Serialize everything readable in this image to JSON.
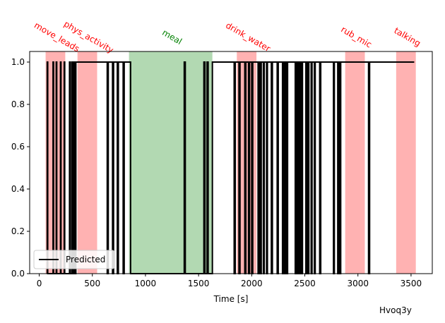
{
  "chart_data": {
    "type": "line",
    "title": "",
    "xlabel": "Time [s]",
    "ylabel": "",
    "xlim": [
      -90,
      3700
    ],
    "ylim": [
      0.0,
      1.05
    ],
    "xticks": [
      0,
      500,
      1000,
      1500,
      2000,
      2500,
      3000,
      3500
    ],
    "xtick_labels": [
      "0",
      "500",
      "1000",
      "1500",
      "2000",
      "2500",
      "3000",
      "3500"
    ],
    "yticks": [
      0.0,
      0.2,
      0.4,
      0.6,
      0.8,
      1.0
    ],
    "ytick_labels": [
      "0.0",
      "0.2",
      "0.4",
      "0.6",
      "0.8",
      "1.0"
    ],
    "grid": false,
    "legend": {
      "location": "lower-left",
      "entries": [
        "Predicted"
      ]
    },
    "annotation": "Hvoq3y",
    "activity_bands": [
      {
        "label": "move_leads",
        "start": 60,
        "end": 245,
        "color": "#ff0000",
        "text_color": "#ff0000"
      },
      {
        "label": "phys_activity",
        "start": 360,
        "end": 545,
        "color": "#ff0000",
        "text_color": "#ff0000"
      },
      {
        "label": "meal",
        "start": 845,
        "end": 1630,
        "color": "#008000",
        "text_color": "#008000"
      },
      {
        "label": "drink_water",
        "start": 1860,
        "end": 2045,
        "color": "#ff0000",
        "text_color": "#ff0000"
      },
      {
        "label": "rub_mic",
        "start": 2880,
        "end": 3065,
        "color": "#ff0000",
        "text_color": "#ff0000"
      },
      {
        "label": "talking",
        "start": 3360,
        "end": 3545,
        "color": "#ff0000",
        "text_color": "#ff0000"
      }
    ],
    "series": [
      {
        "name": "Predicted",
        "color": "#000000",
        "x": [
          75,
          75,
          80,
          80,
          130,
          130,
          135,
          135,
          160,
          160,
          165,
          165,
          200,
          200,
          205,
          205,
          235,
          235,
          240,
          240,
          285,
          285,
          290,
          290,
          305,
          305,
          310,
          310,
          320,
          320,
          325,
          325,
          330,
          330,
          335,
          335,
          345,
          345,
          350,
          350,
          640,
          640,
          650,
          650,
          690,
          690,
          700,
          700,
          735,
          735,
          745,
          745,
          790,
          790,
          800,
          800,
          860,
          860,
          1365,
          1365,
          1375,
          1375,
          1550,
          1550,
          1560,
          1560,
          1580,
          1580,
          1590,
          1590,
          1630,
          1630,
          1835,
          1835,
          1845,
          1845,
          1880,
          1880,
          1890,
          1890,
          1935,
          1935,
          1945,
          1945,
          1970,
          1970,
          1980,
          1980,
          2000,
          2000,
          2010,
          2010,
          2060,
          2060,
          2070,
          2070,
          2080,
          2080,
          2090,
          2090,
          2110,
          2110,
          2118,
          2118,
          2140,
          2140,
          2148,
          2148,
          2185,
          2185,
          2195,
          2195,
          2240,
          2240,
          2250,
          2250,
          2290,
          2290,
          2300,
          2300,
          2310,
          2310,
          2318,
          2318,
          2330,
          2330,
          2338,
          2338,
          2410,
          2410,
          2418,
          2418,
          2430,
          2430,
          2438,
          2438,
          2450,
          2450,
          2458,
          2458,
          2470,
          2470,
          2478,
          2478,
          2510,
          2510,
          2518,
          2518,
          2530,
          2530,
          2538,
          2538,
          2560,
          2560,
          2568,
          2568,
          2590,
          2590,
          2598,
          2598,
          2640,
          2640,
          2650,
          2650,
          2770,
          2770,
          2778,
          2778,
          2810,
          2810,
          2818,
          2818,
          2830,
          2830,
          2838,
          2838,
          3100,
          3100,
          3110,
          3110,
          3530
        ],
        "y": [
          0,
          1,
          1,
          0,
          0,
          1,
          1,
          0,
          0,
          1,
          1,
          0,
          0,
          1,
          1,
          0,
          0,
          1,
          1,
          0,
          0,
          1,
          1,
          0,
          0,
          1,
          1,
          0,
          0,
          1,
          1,
          0,
          0,
          1,
          1,
          0,
          0,
          1,
          1,
          1,
          1,
          0,
          0,
          1,
          1,
          0,
          0,
          1,
          1,
          0,
          0,
          1,
          1,
          0,
          0,
          1,
          1,
          0,
          0,
          1,
          1,
          0,
          0,
          1,
          1,
          0,
          0,
          1,
          1,
          0,
          0,
          1,
          1,
          0,
          0,
          1,
          1,
          0,
          0,
          1,
          1,
          0,
          0,
          1,
          1,
          0,
          0,
          1,
          1,
          0,
          0,
          1,
          1,
          0,
          0,
          1,
          1,
          0,
          0,
          1,
          1,
          0,
          0,
          1,
          1,
          0,
          0,
          1,
          1,
          0,
          0,
          1,
          1,
          0,
          0,
          1,
          1,
          0,
          0,
          1,
          1,
          0,
          0,
          1,
          1,
          0,
          0,
          1,
          1,
          0,
          0,
          1,
          1,
          0,
          0,
          1,
          1,
          0,
          0,
          1,
          1,
          0,
          0,
          1,
          1,
          0,
          0,
          1,
          1,
          0,
          0,
          1,
          1,
          0,
          0,
          1,
          1,
          0,
          0,
          1,
          1,
          0,
          0,
          1,
          1,
          0,
          0,
          1,
          1,
          0,
          0,
          1,
          1,
          0,
          0,
          1,
          1,
          0,
          0,
          1,
          1
        ]
      }
    ]
  }
}
